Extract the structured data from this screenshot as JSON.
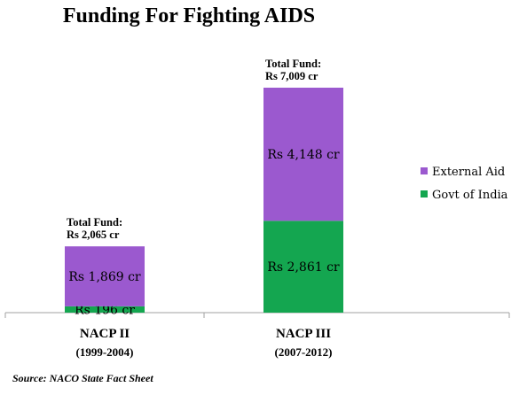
{
  "chart_data": {
    "type": "bar",
    "stacked": true,
    "title": "Funding For Fighting AIDS",
    "categories": [
      "NACP II",
      "NACP III"
    ],
    "periods": [
      "(1999-2004)",
      "(2007-2012)"
    ],
    "series": [
      {
        "name": "Govt of India",
        "color": "#14A650",
        "values": [
          196,
          2861
        ],
        "labels": [
          "Rs 196 cr",
          "Rs 2,861 cr"
        ]
      },
      {
        "name": "External Aid",
        "color": "#9B59CF",
        "values": [
          1869,
          4148
        ],
        "labels": [
          "Rs 1,869 cr",
          "Rs 4,148 cr"
        ]
      }
    ],
    "totals": [
      {
        "line1": "Total Fund:",
        "line2": "Rs 2,065 cr"
      },
      {
        "line1": "Total Fund:",
        "line2": "Rs 7,009 cr"
      }
    ],
    "legend_order": [
      "External Aid",
      "Govt of India"
    ],
    "legend_position": "right",
    "ylim": [
      0,
      7009
    ],
    "grid": false,
    "source": "Source: NACO State Fact Sheet"
  }
}
